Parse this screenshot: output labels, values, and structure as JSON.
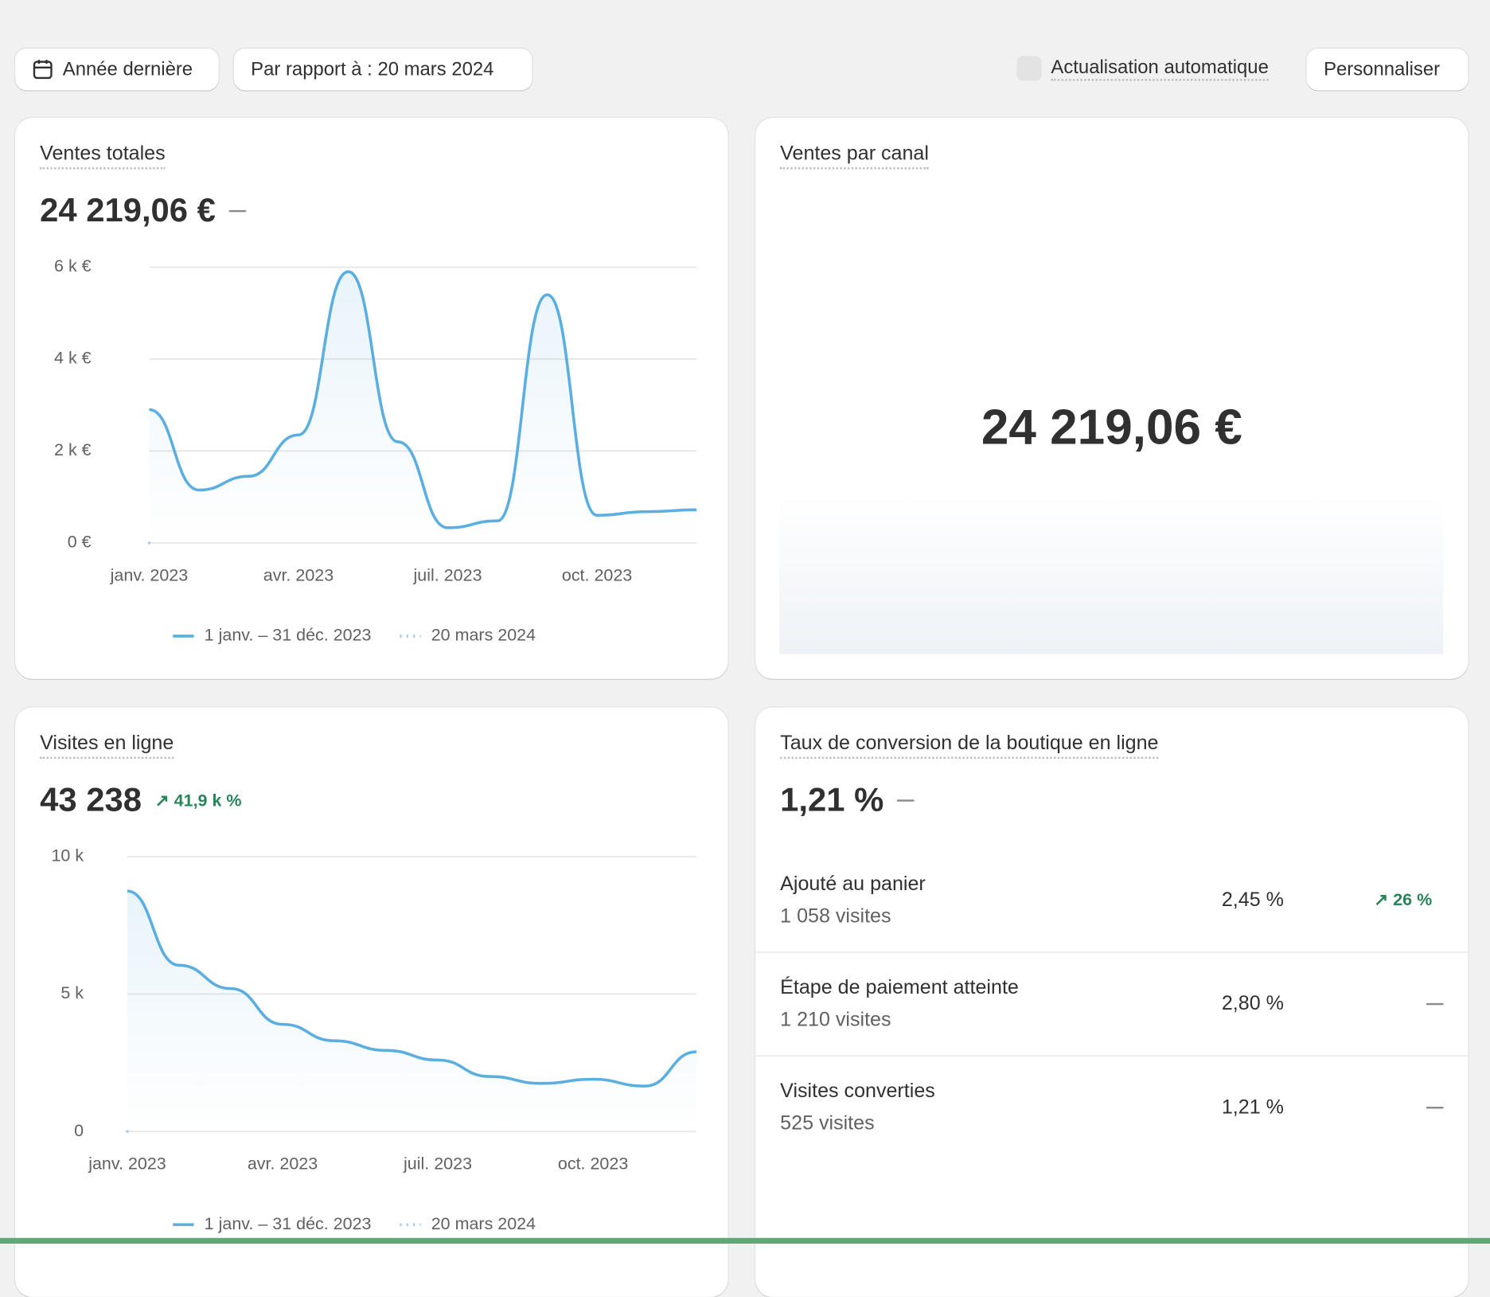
{
  "toolbar": {
    "date_range": "Année dernière",
    "comparison": "Par rapport à : 20 mars 2024",
    "auto_refresh": "Actualisation automatique",
    "customize": "Personnaliser"
  },
  "cards": [
    {
      "title": "Ventes totales",
      "total": "24 219,06 €",
      "chart": {
        "type": "line",
        "categories": [
          "janv. 2023",
          null,
          null,
          "avr. 2023",
          null,
          null,
          "juil. 2023",
          null,
          null,
          "oct. 2023",
          null,
          null
        ],
        "series": [
          {
            "name": "1 janv. – 31 déc. 2023",
            "color": "#5aaee0",
            "values": [
              2900,
              1150,
              1450,
              2350,
              5900,
              2200,
              330,
              480,
              5400,
              600,
              680,
              720
            ]
          },
          {
            "name": "20 mars 2024",
            "color": "#a6cdea",
            "values": [
              0,
              null,
              null,
              null,
              null,
              null,
              null,
              null,
              null,
              null,
              null,
              null
            ]
          }
        ],
        "ylim": [
          0,
          6000
        ],
        "yticks": [
          {
            "value": 0,
            "label": "0 €"
          },
          {
            "value": 2000,
            "label": "2 k €"
          },
          {
            "value": 4000,
            "label": "4 k €"
          },
          {
            "value": 6000,
            "label": "6 k €"
          }
        ],
        "grid": true
      }
    },
    {
      "title": "Ventes par canal",
      "total": "24 219,06 €"
    },
    {
      "title": "Visites en ligne",
      "total": "43 238",
      "change": "41,9 k %",
      "chart": {
        "type": "line",
        "categories": [
          "janv. 2023",
          null,
          null,
          "avr. 2023",
          null,
          null,
          "juil. 2023",
          null,
          null,
          "oct. 2023",
          null,
          null
        ],
        "series": [
          {
            "name": "1 janv. – 31 déc. 2023",
            "color": "#5aaee0",
            "values": [
              8750,
              6050,
              5200,
              3900,
              3300,
              2950,
              2600,
              2000,
              1750,
              1900,
              1650,
              2900
            ]
          },
          {
            "name": "20 mars 2024",
            "color": "#a6cdea",
            "values": [
              0,
              null,
              null,
              null,
              null,
              null,
              null,
              null,
              null,
              null,
              null,
              null
            ]
          }
        ],
        "ylim": [
          0,
          10000
        ],
        "yticks": [
          0,
          {
            "value": 5000,
            "label": "5 k"
          },
          {
            "value": 10000,
            "label": "10 k"
          }
        ],
        "grid": true
      }
    },
    {
      "title": "Taux de conversion de la boutique en ligne",
      "total": "1,21 %",
      "rows": [
        {
          "label": "Ajouté au panier",
          "visits": "1 058 visites",
          "rate": "2,45 %",
          "change": "26 %"
        },
        {
          "label": "Étape de paiement atteinte",
          "visits": "1 210 visites",
          "rate": "2,80 %"
        },
        {
          "label": "Visites converties",
          "visits": "525 visites",
          "rate": "1,21 %"
        }
      ]
    }
  ]
}
